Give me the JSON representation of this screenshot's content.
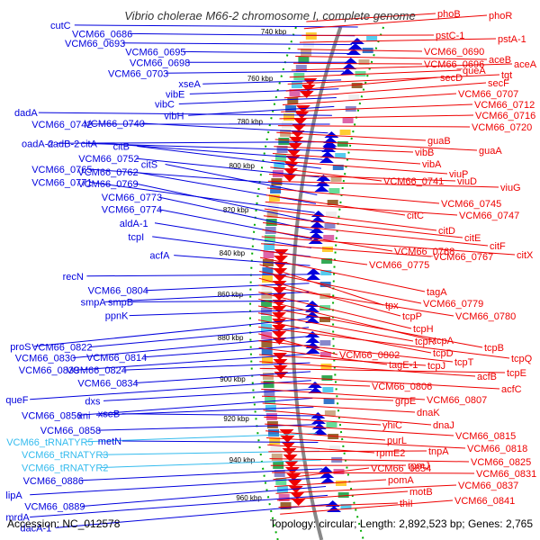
{
  "title": "Vibrio cholerae M66-2 chromosome I, complete genome",
  "footer": {
    "accession": "Accession: NC_012578",
    "topology": "Topology: circular; Length: 2,892,523 bp; Genes: 2,765"
  },
  "colors": {
    "forward": "#0000dd",
    "reverse": "#ee0000",
    "trna": "#33bbee",
    "backbone": "#888888",
    "tick": "#00aa00"
  },
  "kbp_marks": [
    "740 kbp",
    "760 kbp",
    "780 kbp",
    "800 kbp",
    "820 kbp",
    "840 kbp",
    "860 kbp",
    "880 kbp",
    "900 kbp",
    "920 kbp",
    "940 kbp",
    "960 kbp"
  ],
  "left_labels": [
    {
      "text": "cutC",
      "type": "gene"
    },
    {
      "text": "VCM66_0686",
      "type": "gene"
    },
    {
      "text": "VCM66_0693",
      "type": "gene"
    },
    {
      "text": "VCM66_0695",
      "type": "gene"
    },
    {
      "text": "VCM66_0698",
      "type": "gene"
    },
    {
      "text": "VCM66_0703",
      "type": "gene"
    },
    {
      "text": "xseA",
      "type": "gene"
    },
    {
      "text": "vibE",
      "type": "gene"
    },
    {
      "text": "vibC",
      "type": "gene"
    },
    {
      "text": "vibH",
      "type": "gene"
    },
    {
      "text": "dadA",
      "type": "gene"
    },
    {
      "text": "VCM66_0742",
      "type": "gene"
    },
    {
      "text": "VCM66_0740",
      "type": "gene"
    },
    {
      "text": "oadA-2",
      "type": "gene"
    },
    {
      "text": "oadB-2",
      "type": "gene"
    },
    {
      "text": "citA",
      "type": "gene"
    },
    {
      "text": "citB",
      "type": "gene"
    },
    {
      "text": "VCM66_0752",
      "type": "gene"
    },
    {
      "text": "VCM66_0765",
      "type": "gene"
    },
    {
      "text": "citS",
      "type": "gene"
    },
    {
      "text": "VCM66_0762",
      "type": "gene"
    },
    {
      "text": "VCM66_0771",
      "type": "gene"
    },
    {
      "text": "VCM66_0769",
      "type": "gene"
    },
    {
      "text": "VCM66_0773",
      "type": "gene"
    },
    {
      "text": "VCM66_0774",
      "type": "gene"
    },
    {
      "text": "aldA-1",
      "type": "gene"
    },
    {
      "text": "tcpI",
      "type": "gene"
    },
    {
      "text": "acfA",
      "type": "gene"
    },
    {
      "text": "recN",
      "type": "gene"
    },
    {
      "text": "VCM66_0804",
      "type": "gene"
    },
    {
      "text": "smpA",
      "type": "gene"
    },
    {
      "text": "smpB",
      "type": "gene"
    },
    {
      "text": "ppnK",
      "type": "gene"
    },
    {
      "text": "proS",
      "type": "gene"
    },
    {
      "text": "VCM66_0822",
      "type": "gene"
    },
    {
      "text": "VCM66_0830",
      "type": "gene"
    },
    {
      "text": "VCM66_0814",
      "type": "gene"
    },
    {
      "text": "VCM66_0839",
      "type": "gene"
    },
    {
      "text": "VCM66_0824",
      "type": "gene"
    },
    {
      "text": "VCM66_0834",
      "type": "gene"
    },
    {
      "text": "queF",
      "type": "gene"
    },
    {
      "text": "dxs",
      "type": "gene"
    },
    {
      "text": "VCM66_0856",
      "type": "gene"
    },
    {
      "text": "xni",
      "type": "gene"
    },
    {
      "text": "xseB",
      "type": "gene"
    },
    {
      "text": "VCM66_0858",
      "type": "gene"
    },
    {
      "text": "VCM66_tRNATYR5",
      "type": "trna"
    },
    {
      "text": "metN",
      "type": "gene"
    },
    {
      "text": "VCM66_tRNATYR3",
      "type": "trna"
    },
    {
      "text": "VCM66_tRNATYR2",
      "type": "trna"
    },
    {
      "text": "VCM66_0886",
      "type": "gene"
    },
    {
      "text": "lipA",
      "type": "gene"
    },
    {
      "text": "VCM66_0889",
      "type": "gene"
    },
    {
      "text": "mrdA",
      "type": "gene"
    },
    {
      "text": "dacA-1",
      "type": "gene"
    }
  ],
  "right_labels": [
    "phoB",
    "phoR",
    "pstC-1",
    "pstA-1",
    "VCM66_0690",
    "aceB",
    "VCM66_0696",
    "aceA",
    "queA",
    "tgt",
    "secD",
    "secF",
    "VCM66_0707",
    "VCM66_0712",
    "VCM66_0716",
    "VCM66_0720",
    "guaB",
    "guaA",
    "vibB",
    "vibA",
    "viuP",
    "VCM66_0741",
    "viuD",
    "viuG",
    "VCM66_0745",
    "citC",
    "VCM66_0747",
    "citD",
    "citE",
    "citF",
    "VCM66_0768",
    "citX",
    "VCM66_0767",
    "VCM66_0775",
    "tagA",
    "tpx",
    "VCM66_0779",
    "tcpP",
    "VCM66_0780",
    "tcpH",
    "tcpA",
    "tcpB",
    "tcpR",
    "tcpD",
    "tcpQ",
    "VCM66_0802",
    "tcpT",
    "tagE-1",
    "tcpJ",
    "acfB",
    "tcpE",
    "acfC",
    "VCM66_0806",
    "VCM66_0807",
    "grpE",
    "dnaK",
    "dnaJ",
    "yhiC",
    "VCM66_0815",
    "purL",
    "VCM66_0818",
    "rpmE2",
    "tnpA",
    "VCM66_0825",
    "rpmJ",
    "VCM66_0831",
    "VCM66_0854",
    "pomA",
    "VCM66_0837",
    "motB",
    "thiI",
    "VCM66_0841"
  ]
}
